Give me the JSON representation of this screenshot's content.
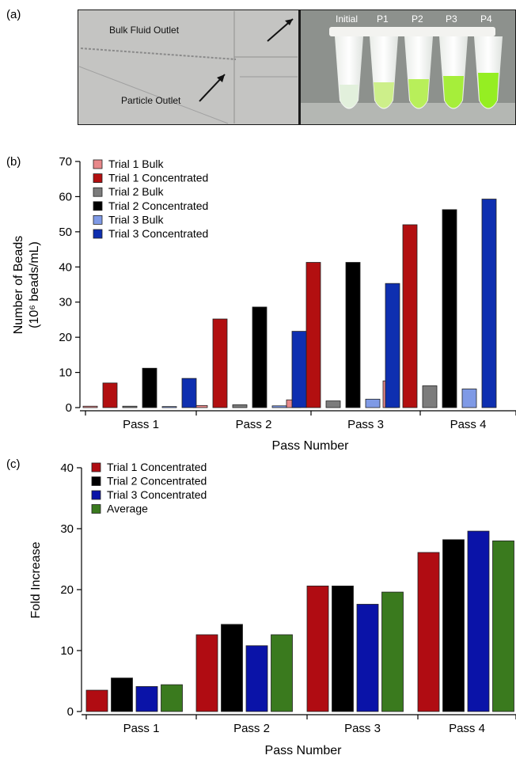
{
  "panels": {
    "a": "(a)",
    "b": "(b)",
    "c": "(c)"
  },
  "photo": {
    "left_labels": [
      "Bulk Fluid Outlet",
      "Particle Outlet"
    ],
    "tube_labels": [
      "Initial",
      "P1",
      "P2",
      "P3",
      "P4"
    ]
  },
  "chart_data": [
    {
      "type": "bar",
      "xlabel": "Pass Number",
      "ylabel_lines": [
        "Number of Beads",
        "(10⁶ beads/mL)"
      ],
      "ylim": [
        0,
        70
      ],
      "yticks": [
        0,
        10,
        20,
        30,
        40,
        50,
        60,
        70
      ],
      "categories": [
        "Pass 1",
        "Pass 2",
        "Pass 3",
        "Pass 4"
      ],
      "legend_position": "top-left",
      "series": [
        {
          "name": "Trial 1 Bulk",
          "color": "#e8888a",
          "values": [
            0.4,
            0.6,
            2.2,
            7.6
          ]
        },
        {
          "name": "Trial 1 Concentrated",
          "color": "#b20f10",
          "values": [
            7.0,
            25.2,
            41.3,
            52.0
          ]
        },
        {
          "name": "Trial 2 Bulk",
          "color": "#7c7c7c",
          "values": [
            0.4,
            0.8,
            1.9,
            6.2
          ]
        },
        {
          "name": "Trial 2 Concentrated",
          "color": "#000000",
          "values": [
            11.2,
            28.6,
            41.3,
            56.3
          ]
        },
        {
          "name": "Trial 3 Bulk",
          "color": "#7f9ae6",
          "values": [
            0.3,
            0.5,
            2.4,
            5.3
          ]
        },
        {
          "name": "Trial 3 Concentrated",
          "color": "#0e2fb0",
          "values": [
            8.3,
            21.7,
            35.3,
            59.3
          ]
        }
      ]
    },
    {
      "type": "bar",
      "xlabel": "Pass Number",
      "ylabel": "Fold Increase",
      "ylim": [
        0,
        40
      ],
      "yticks": [
        0,
        10,
        20,
        30,
        40
      ],
      "categories": [
        "Pass 1",
        "Pass 2",
        "Pass 3",
        "Pass 4"
      ],
      "legend_position": "top-left",
      "series": [
        {
          "name": "Trial 1 Concentrated",
          "color": "#b00c12",
          "values": [
            3.5,
            12.6,
            20.6,
            26.1
          ]
        },
        {
          "name": "Trial 2 Concentrated",
          "color": "#000000",
          "values": [
            5.5,
            14.3,
            20.6,
            28.2
          ]
        },
        {
          "name": "Trial 3 Concentrated",
          "color": "#0a13a8",
          "values": [
            4.1,
            10.8,
            17.6,
            29.6
          ]
        },
        {
          "name": "Average",
          "color": "#3a7a1e",
          "values": [
            4.4,
            12.6,
            19.6,
            28.0
          ]
        }
      ]
    }
  ]
}
